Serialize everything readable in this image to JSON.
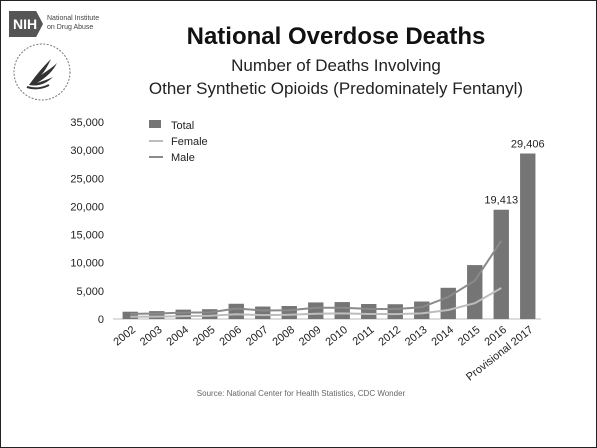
{
  "logo": {
    "badge_text": "NIH",
    "org_line_1": "National Institute",
    "org_line_2": "on Drug Abuse"
  },
  "chart_data": {
    "type": "bar",
    "title": "National Overdose Deaths",
    "subtitle_line_1": "Number of Deaths Involving",
    "subtitle_line_2": "Other Synthetic Opioids (Predominately Fentanyl)",
    "categories": [
      "2002",
      "2003",
      "2004",
      "2005",
      "2006",
      "2007",
      "2008",
      "2009",
      "2010",
      "2011",
      "2012",
      "2013",
      "2014",
      "2015",
      "2016",
      "Provisional 2017"
    ],
    "series": [
      {
        "name": "Total",
        "kind": "bar",
        "color": "#757575",
        "values": [
          1295,
          1400,
          1664,
          1742,
          2707,
          2213,
          2306,
          2946,
          3007,
          2666,
          2628,
          3105,
          5544,
          9580,
          19413,
          29406
        ]
      },
      {
        "name": "Female",
        "kind": "line",
        "color": "#bdbdbd",
        "values": [
          400,
          430,
          520,
          560,
          850,
          700,
          740,
          950,
          1000,
          880,
          870,
          1000,
          1600,
          2800,
          5500,
          null
        ]
      },
      {
        "name": "Male",
        "kind": "line",
        "color": "#8a8a8a",
        "values": [
          900,
          970,
          1140,
          1180,
          1860,
          1510,
          1570,
          2000,
          2010,
          1790,
          1760,
          2100,
          3900,
          6800,
          13900,
          null
        ]
      }
    ],
    "data_labels": [
      {
        "category": "2016",
        "text": "19,413"
      },
      {
        "category": "Provisional 2017",
        "text": "29,406"
      }
    ],
    "y_ticks": [
      0,
      5000,
      10000,
      15000,
      20000,
      25000,
      30000,
      35000
    ],
    "y_tick_labels": [
      "0",
      "5,000",
      "10,000",
      "15,000",
      "20,000",
      "25,000",
      "30,000",
      "35,000"
    ],
    "ylim": [
      0,
      35000
    ],
    "grid": false,
    "legend_position": "top-left",
    "source": "Source: National Center for Health Statistics, CDC Wonder"
  }
}
